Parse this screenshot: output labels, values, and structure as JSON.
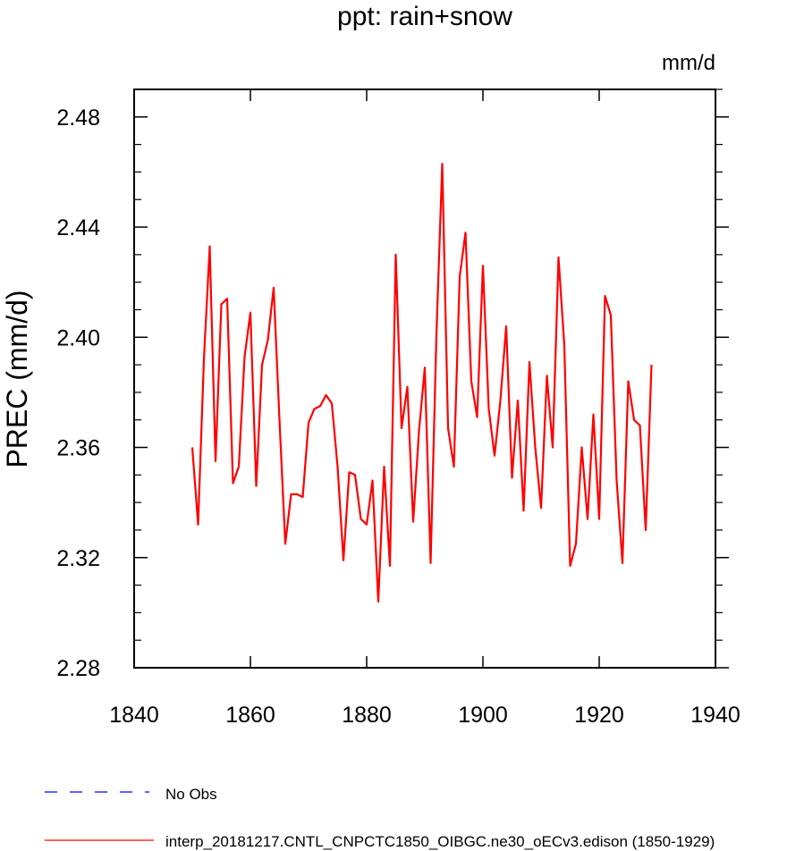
{
  "chart_data": {
    "type": "line",
    "title": "ppt: rain+snow",
    "units": "mm/d",
    "xlabel": "",
    "ylabel": "PREC  (mm/d)",
    "xlim": [
      1840,
      1940
    ],
    "ylim": [
      2.28,
      2.49
    ],
    "xticks": [
      "1840",
      "1860",
      "1880",
      "1900",
      "1920",
      "1940"
    ],
    "yticks": [
      "2.28",
      "2.32",
      "2.36",
      "2.40",
      "2.44",
      "2.48"
    ],
    "series": [
      {
        "name": "interp_20181217.CNTL_CNPCTC1850_OIBGC.ne30_oECv3.edison (1850-1929)",
        "color": "#ff0000",
        "x": [
          1850,
          1851,
          1852,
          1853,
          1854,
          1855,
          1856,
          1857,
          1858,
          1859,
          1860,
          1861,
          1862,
          1863,
          1864,
          1865,
          1866,
          1867,
          1868,
          1869,
          1870,
          1871,
          1872,
          1873,
          1874,
          1875,
          1876,
          1877,
          1878,
          1879,
          1880,
          1881,
          1882,
          1883,
          1884,
          1885,
          1886,
          1887,
          1888,
          1889,
          1890,
          1891,
          1892,
          1893,
          1894,
          1895,
          1896,
          1897,
          1898,
          1899,
          1900,
          1901,
          1902,
          1903,
          1904,
          1905,
          1906,
          1907,
          1908,
          1909,
          1910,
          1911,
          1912,
          1913,
          1914,
          1915,
          1916,
          1917,
          1918,
          1919,
          1920,
          1921,
          1922,
          1923,
          1924,
          1925,
          1926,
          1927,
          1928,
          1929
        ],
        "values": [
          2.36,
          2.332,
          2.392,
          2.433,
          2.355,
          2.412,
          2.414,
          2.347,
          2.353,
          2.393,
          2.409,
          2.346,
          2.39,
          2.399,
          2.418,
          2.37,
          2.325,
          2.343,
          2.343,
          2.342,
          2.369,
          2.374,
          2.375,
          2.379,
          2.376,
          2.353,
          2.319,
          2.351,
          2.35,
          2.334,
          2.332,
          2.348,
          2.304,
          2.353,
          2.317,
          2.43,
          2.367,
          2.382,
          2.333,
          2.366,
          2.389,
          2.318,
          2.401,
          2.463,
          2.367,
          2.353,
          2.422,
          2.438,
          2.384,
          2.371,
          2.426,
          2.374,
          2.357,
          2.377,
          2.404,
          2.349,
          2.377,
          2.337,
          2.391,
          2.36,
          2.338,
          2.386,
          2.36,
          2.429,
          2.397,
          2.317,
          2.325,
          2.36,
          2.334,
          2.372,
          2.334,
          2.415,
          2.408,
          2.348,
          2.318,
          2.384,
          2.37,
          2.368,
          2.33,
          2.39
        ]
      }
    ],
    "legend": [
      {
        "label": "No Obs",
        "style": "dashed",
        "color": "#0000ff"
      },
      {
        "label": "interp_20181217.CNTL_CNPCTC1850_OIBGC.ne30_oECv3.edison (1850-1929)",
        "style": "solid",
        "color": "#ff0000"
      }
    ]
  }
}
